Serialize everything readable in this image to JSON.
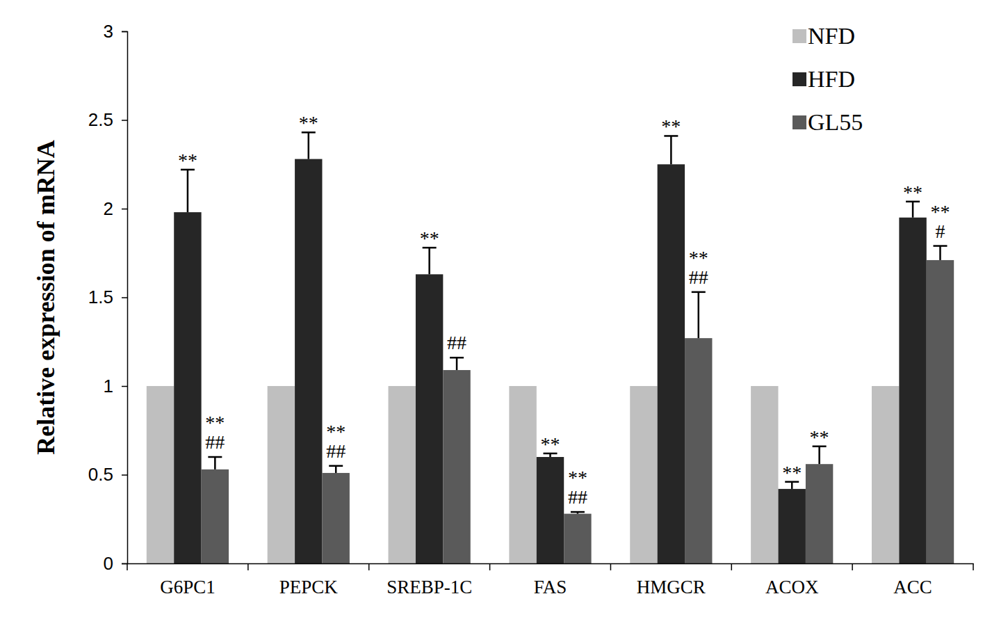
{
  "chart_data": {
    "type": "bar",
    "y_label": "Relative expression of mRNA",
    "categories": [
      "G6PC1",
      "PEPCK",
      "SREBP-1C",
      "FAS",
      "HMGCR",
      "ACOX",
      "ACC"
    ],
    "series": [
      {
        "name": "NFD",
        "color": "#bfbfbf",
        "values": [
          1,
          1,
          1,
          1,
          1,
          1,
          1
        ]
      },
      {
        "name": "HFD",
        "color": "#262626",
        "values": [
          1.98,
          2.28,
          1.63,
          0.6,
          2.25,
          0.42,
          1.95
        ],
        "errors": [
          0.24,
          0.15,
          0.15,
          0.02,
          0.16,
          0.04,
          0.09
        ],
        "significance": [
          [
            "**"
          ],
          [
            "**"
          ],
          [
            "**"
          ],
          [
            "**"
          ],
          [
            "**"
          ],
          [
            "**"
          ],
          [
            "**"
          ]
        ]
      },
      {
        "name": "GL55",
        "color": "#5a5a5a",
        "values": [
          0.53,
          0.51,
          1.09,
          0.28,
          1.27,
          0.56,
          1.71
        ],
        "errors": [
          0.07,
          0.04,
          0.07,
          0.01,
          0.26,
          0.1,
          0.08
        ],
        "significance": [
          [
            "**",
            "##"
          ],
          [
            "**",
            "##"
          ],
          [
            "##"
          ],
          [
            "**",
            "##"
          ],
          [
            "**",
            "##"
          ],
          [
            "**"
          ],
          [
            "**",
            "#"
          ]
        ]
      }
    ],
    "ylim": [
      0,
      3
    ],
    "yticks": [
      0,
      0.5,
      1,
      1.5,
      2,
      2.5,
      3
    ],
    "grid": false,
    "legend": "top-right"
  }
}
